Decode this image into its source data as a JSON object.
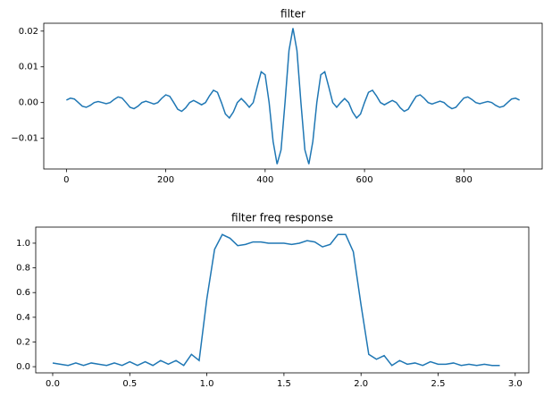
{
  "chart_data": [
    {
      "type": "line",
      "title": "filter",
      "color": "#1f77b4",
      "x": [
        0,
        8,
        16,
        24,
        32,
        40,
        48,
        56,
        64,
        72,
        80,
        88,
        96,
        104,
        112,
        120,
        128,
        136,
        144,
        152,
        160,
        168,
        176,
        184,
        192,
        200,
        208,
        216,
        224,
        232,
        240,
        248,
        256,
        264,
        272,
        280,
        288,
        296,
        304,
        312,
        320,
        328,
        336,
        344,
        352,
        360,
        368,
        376,
        384,
        392,
        400,
        408,
        416,
        424,
        432,
        440,
        448,
        456,
        464,
        472,
        480,
        488,
        496,
        504,
        512,
        520,
        528,
        536,
        544,
        552,
        560,
        568,
        576,
        584,
        592,
        600,
        608,
        616,
        624,
        632,
        640,
        648,
        656,
        664,
        672,
        680,
        688,
        696,
        704,
        712,
        720,
        728,
        736,
        744,
        752,
        760,
        768,
        776,
        784,
        792,
        800,
        808,
        816,
        824,
        832,
        840,
        848,
        856,
        864,
        872,
        880,
        888,
        896,
        904,
        912
      ],
      "values": [
        0.0007,
        0.00123,
        0.00099,
        0,
        -0.00103,
        -0.00133,
        -0.00078,
        0,
        0.0003,
        0,
        -0.00031,
        0,
        0.00088,
        0.00157,
        0.00126,
        0,
        -0.00133,
        -0.00172,
        -0.00102,
        0,
        0.00039,
        0,
        -0.00042,
        0,
        0.00121,
        0.00215,
        0.00175,
        0,
        -0.00187,
        -0.00246,
        -0.00147,
        0,
        0.00058,
        0,
        -0.00063,
        0,
        0.00189,
        0.00345,
        0.00286,
        0,
        -0.0032,
        -0.00431,
        -0.00265,
        0,
        0.00112,
        0,
        -0.00132,
        0,
        0.00442,
        0.00861,
        0.00776,
        0,
        -0.01087,
        -0.01723,
        -0.01326,
        0,
        0.01456,
        0.02083,
        0.01456,
        0,
        -0.01326,
        -0.01723,
        -0.01087,
        0,
        0.00776,
        0.00861,
        0.00442,
        0,
        -0.00132,
        0,
        0.00112,
        0,
        -0.00265,
        -0.00431,
        -0.0032,
        0,
        0.00286,
        0.00345,
        0.00189,
        0,
        -0.00063,
        0,
        0.00058,
        0,
        -0.00147,
        -0.00246,
        -0.00187,
        0,
        0.00175,
        0.00215,
        0.00121,
        0,
        -0.00042,
        0,
        0.00039,
        0,
        -0.00102,
        -0.00172,
        -0.00133,
        0,
        0.00126,
        0.00157,
        0.00088,
        0,
        -0.00031,
        0,
        0.0003,
        0,
        -0.00078,
        -0.00133,
        -0.00103,
        0,
        0.00099,
        0.00123,
        0.0007
      ],
      "xlim": [
        -45.6,
        957.6
      ],
      "xticks": [
        0,
        200,
        400,
        600,
        800
      ],
      "ylim": [
        -0.0186,
        0.0222
      ],
      "yticks": [
        {
          "value": -0.01,
          "label": "−0.01"
        },
        {
          "value": 0,
          "label": "0.00"
        },
        {
          "value": 0.01,
          "label": "0.01"
        },
        {
          "value": 0.02,
          "label": "0.02"
        }
      ]
    },
    {
      "type": "line",
      "title": "filter freq response",
      "color": "#1f77b4",
      "x": [
        0,
        0.05,
        0.1,
        0.15,
        0.2,
        0.25,
        0.3,
        0.35,
        0.4,
        0.45,
        0.5,
        0.55,
        0.6,
        0.65,
        0.7,
        0.75,
        0.8,
        0.85,
        0.9,
        0.95,
        1.0,
        1.05,
        1.1,
        1.15,
        1.2,
        1.25,
        1.3,
        1.35,
        1.4,
        1.45,
        1.5,
        1.55,
        1.6,
        1.65,
        1.7,
        1.75,
        1.8,
        1.85,
        1.9,
        1.95,
        2.0,
        2.05,
        2.1,
        2.15,
        2.2,
        2.25,
        2.3,
        2.35,
        2.4,
        2.45,
        2.5,
        2.55,
        2.6,
        2.65,
        2.7,
        2.75,
        2.8,
        2.85,
        2.9
      ],
      "values": [
        0.03,
        0.02,
        0.01,
        0.03,
        0.01,
        0.03,
        0.02,
        0.01,
        0.03,
        0.01,
        0.04,
        0.01,
        0.04,
        0.01,
        0.05,
        0.02,
        0.05,
        0.01,
        0.1,
        0.05,
        0.55,
        0.95,
        1.07,
        1.04,
        0.98,
        0.99,
        1.01,
        1.01,
        1.0,
        1.0,
        1.0,
        0.99,
        1.0,
        1.02,
        1.01,
        0.97,
        0.99,
        1.07,
        1.07,
        0.93,
        0.5,
        0.1,
        0.06,
        0.09,
        0.01,
        0.05,
        0.02,
        0.03,
        0.01,
        0.04,
        0.02,
        0.02,
        0.03,
        0.01,
        0.02,
        0.01,
        0.02,
        0.01,
        0.01
      ],
      "xlim": [
        -0.11,
        3.088
      ],
      "xticks": [
        {
          "value": 0,
          "label": "0.0"
        },
        0.5,
        {
          "value": 1,
          "label": "1.0"
        },
        1.5,
        {
          "value": 2,
          "label": "2.0"
        },
        2.5,
        {
          "value": 3,
          "label": "3.0"
        }
      ],
      "ylim": [
        -0.05,
        1.13
      ],
      "yticks": [
        {
          "value": 0,
          "label": "0.0"
        },
        0.2,
        0.4,
        0.6,
        0.8,
        {
          "value": 1,
          "label": "1.0"
        }
      ]
    }
  ]
}
